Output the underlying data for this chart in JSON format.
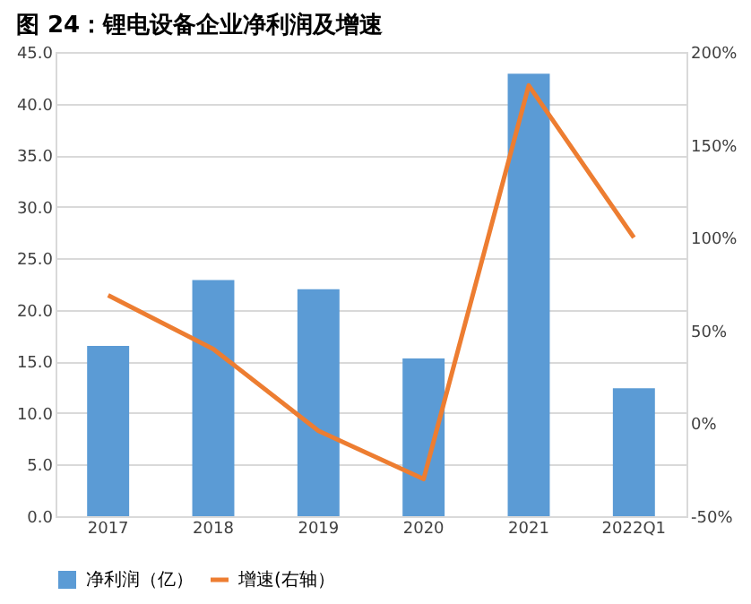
{
  "chart_data": {
    "type": "bar",
    "title": "图 24：锂电设备企业净利润及增速",
    "categories": [
      "2017",
      "2018",
      "2019",
      "2020",
      "2021",
      "2022Q1"
    ],
    "series": [
      {
        "name": "净利润（亿）",
        "color": "#5b9bd5",
        "values": [
          16.5,
          22.9,
          22.0,
          15.3,
          42.9,
          12.4
        ]
      },
      {
        "name": "增速(右轴）",
        "type": "line",
        "axis": "y2",
        "color": "#ed7d31",
        "values": [
          69,
          40,
          -4,
          -30,
          182,
          100
        ]
      }
    ],
    "ylim": [
      0,
      45
    ],
    "yticks": [
      {
        "value": 0,
        "label": "0.0"
      },
      {
        "value": 5,
        "label": "5.0"
      },
      {
        "value": 10,
        "label": "10.0"
      },
      {
        "value": 15,
        "label": "15.0"
      },
      {
        "value": 20,
        "label": "20.0"
      },
      {
        "value": 25,
        "label": "25.0"
      },
      {
        "value": 30,
        "label": "30.0"
      },
      {
        "value": 35,
        "label": "35.0"
      },
      {
        "value": 40,
        "label": "40.0"
      },
      {
        "value": 45,
        "label": "45.0"
      }
    ],
    "y2lim": [
      -50,
      200
    ],
    "y2ticks": [
      {
        "value": -50,
        "label": "-50%"
      },
      {
        "value": 0,
        "label": "0%"
      },
      {
        "value": 50,
        "label": "50%"
      },
      {
        "value": 100,
        "label": "100%"
      },
      {
        "value": 150,
        "label": "150%"
      },
      {
        "value": 200,
        "label": "200%"
      }
    ],
    "grid": "y",
    "legend": "bottom",
    "marker": "none",
    "line_style": "solid"
  }
}
